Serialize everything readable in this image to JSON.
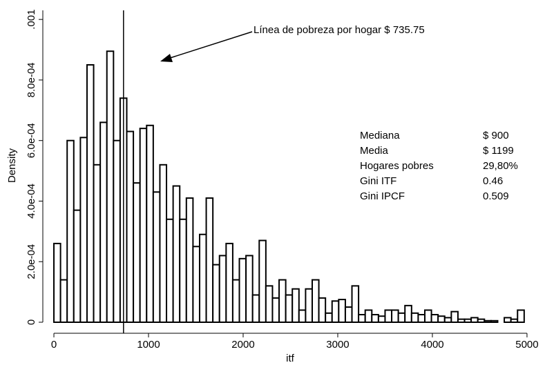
{
  "chart_data": {
    "type": "histogram",
    "x_label": "itf",
    "y_label": "Density",
    "bins": [
      0,
      70,
      140,
      210,
      280,
      350,
      420,
      490,
      560,
      630,
      700,
      770,
      840,
      910,
      980,
      1050,
      1120,
      1190,
      1260,
      1330,
      1400,
      1470,
      1540,
      1610,
      1680,
      1750,
      1820,
      1890,
      1960,
      2030,
      2100,
      2170,
      2240,
      2310,
      2380,
      2450,
      2520,
      2590,
      2660,
      2730,
      2800,
      2870,
      2940,
      3010,
      3080,
      3150,
      3220,
      3290,
      3360,
      3430,
      3500,
      3570,
      3640,
      3710,
      3780,
      3850,
      3920,
      3990,
      4060,
      4130,
      4200,
      4270,
      4340,
      4410,
      4480,
      4550,
      4620,
      4690,
      4760,
      4830,
      4900,
      4970
    ],
    "values": [
      0.00026,
      0.00014,
      0.0006,
      0.00037,
      0.00061,
      0.00085,
      0.00052,
      0.00066,
      0.000895,
      0.0006,
      0.00074,
      0.00063,
      0.00046,
      0.00064,
      0.00065,
      0.00043,
      0.00052,
      0.00034,
      0.00045,
      0.00034,
      0.00041,
      0.00025,
      0.00029,
      0.00041,
      0.00019,
      0.00022,
      0.00026,
      0.00014,
      0.00021,
      0.00022,
      9e-05,
      0.00027,
      0.00012,
      8e-05,
      0.00014,
      9e-05,
      0.00011,
      4e-05,
      0.00011,
      0.00014,
      8e-05,
      3e-05,
      7e-05,
      7.5e-05,
      5e-05,
      0.00012,
      2.5e-05,
      4e-05,
      2.5e-05,
      2e-05,
      4e-05,
      4e-05,
      3e-05,
      5.5e-05,
      3e-05,
      2.5e-05,
      4e-05,
      2.5e-05,
      2e-05,
      1.5e-05,
      3.5e-05,
      1e-05,
      1e-05,
      1.5e-05,
      1e-05,
      5e-06,
      5e-06,
      0,
      1.5e-05,
      1e-05,
      4e-05
    ],
    "color": "#ffffff",
    "edge_color": "#000000",
    "xlim": [
      -117,
      5088
    ],
    "ylim": [
      0,
      0.00103
    ],
    "xticks": [
      0,
      1000,
      2000,
      3000,
      4000,
      5000
    ],
    "yticks": [
      0,
      {
        "value": 0.0002,
        "label": "2.0e-04"
      },
      {
        "value": 0.0004,
        "label": "4.0e-04"
      },
      {
        "value": 0.0006,
        "label": "6.0e-04"
      },
      {
        "value": 0.0008,
        "label": "8.0e-04"
      },
      {
        "value": 0.001,
        "label": ".001"
      }
    ],
    "poverty_line": 735.75,
    "annotation": "Línea de pobreza por hogar $ 735.75",
    "stats": [
      [
        "Mediana",
        "$ 900"
      ],
      [
        "Media",
        "$ 1199"
      ],
      [
        "Hogares pobres",
        "29,80%"
      ],
      [
        "Gini ITF",
        "0.46"
      ],
      [
        "Gini IPCF",
        "0.509"
      ]
    ]
  }
}
